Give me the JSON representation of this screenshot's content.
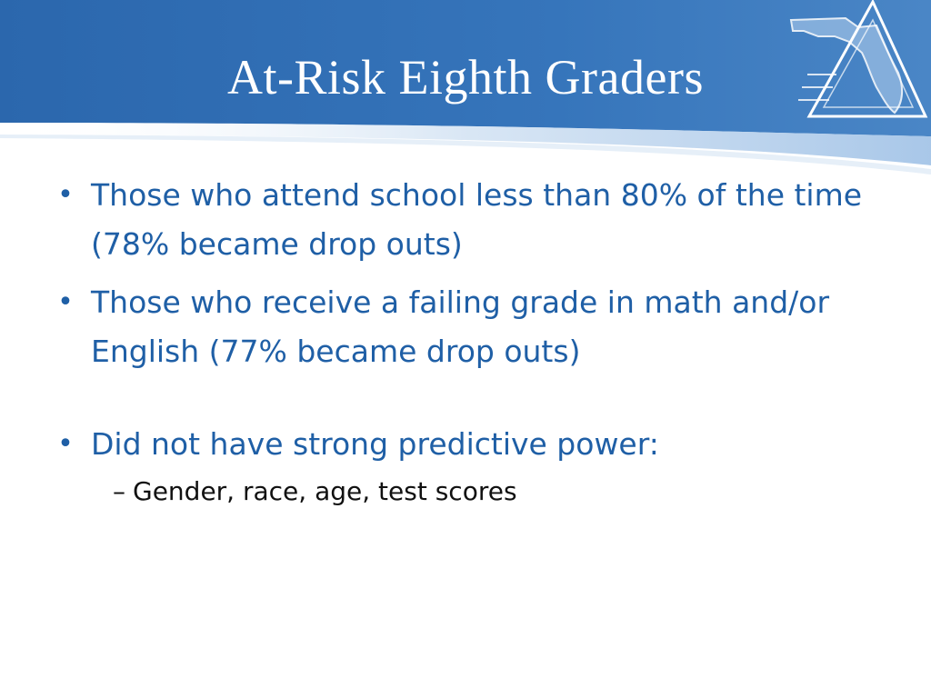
{
  "slide": {
    "title": "At-Risk Eighth Graders"
  },
  "bullets": [
    {
      "text": "Those who attend school less than 80% of the time (78% became drop outs)"
    },
    {
      "text": "Those who receive a failing grade in math and/or English (77% became drop outs)"
    },
    {
      "text": "Did not have strong predictive power:"
    }
  ],
  "sub_bullets": [
    {
      "text": "Gender, race, age, test scores"
    }
  ],
  "glyphs": {
    "bullet": "•",
    "dash": "–"
  },
  "colors": {
    "banner_blue": "#2f6db5",
    "banner_light": "#5b93cf",
    "bullet_text": "#1f5fa6",
    "sub_text": "#111111",
    "title_text": "#ffffff"
  },
  "icons": {
    "logo": "florida-triangle-logo-icon"
  }
}
